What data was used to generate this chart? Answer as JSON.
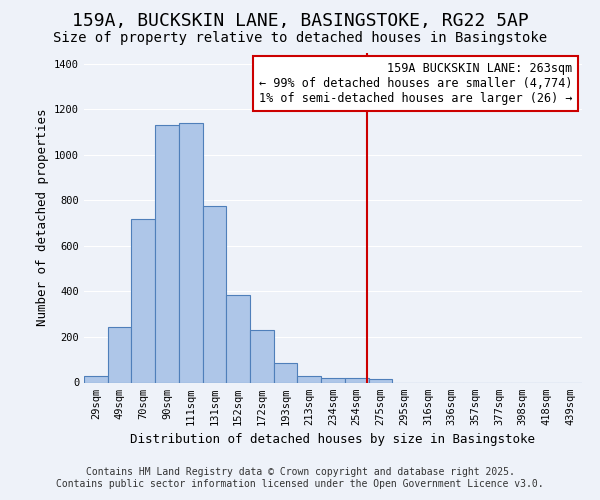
{
  "title": "159A, BUCKSKIN LANE, BASINGSTOKE, RG22 5AP",
  "subtitle": "Size of property relative to detached houses in Basingstoke",
  "xlabel": "Distribution of detached houses by size in Basingstoke",
  "ylabel": "Number of detached properties",
  "bin_labels": [
    "29sqm",
    "49sqm",
    "70sqm",
    "90sqm",
    "111sqm",
    "131sqm",
    "152sqm",
    "172sqm",
    "193sqm",
    "213sqm",
    "234sqm",
    "254sqm",
    "275sqm",
    "295sqm",
    "316sqm",
    "336sqm",
    "357sqm",
    "377sqm",
    "398sqm",
    "418sqm",
    "439sqm"
  ],
  "bar_heights": [
    30,
    245,
    720,
    1130,
    1140,
    775,
    385,
    230,
    85,
    30,
    20,
    20,
    15,
    0,
    0,
    0,
    0,
    0,
    0,
    0,
    0
  ],
  "bar_color": "#aec6e8",
  "bar_edge_color": "#4f7fba",
  "bar_edge_width": 0.8,
  "red_line_x": 11.43,
  "annotation_title": "159A BUCKSKIN LANE: 263sqm",
  "annotation_line1": "← 99% of detached houses are smaller (4,774)",
  "annotation_line2": "1% of semi-detached houses are larger (26) →",
  "annotation_box_color": "#ffffff",
  "annotation_box_edge": "#cc0000",
  "red_line_color": "#cc0000",
  "background_color": "#eef2f9",
  "plot_background": "#eef2f9",
  "ylim": [
    0,
    1450
  ],
  "yticks": [
    0,
    200,
    400,
    600,
    800,
    1000,
    1200,
    1400
  ],
  "grid_color": "#ffffff",
  "footer_line1": "Contains HM Land Registry data © Crown copyright and database right 2025.",
  "footer_line2": "Contains public sector information licensed under the Open Government Licence v3.0.",
  "title_fontsize": 13,
  "subtitle_fontsize": 10,
  "axis_label_fontsize": 9,
  "tick_fontsize": 7.5,
  "annotation_fontsize": 8.5,
  "footer_fontsize": 7
}
